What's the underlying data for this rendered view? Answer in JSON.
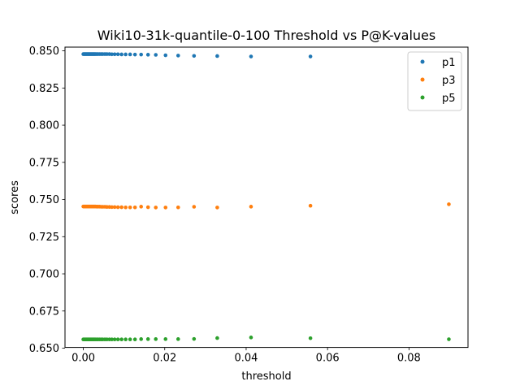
{
  "chart_data": {
    "type": "scatter",
    "title": "Wiki10-31k-quantile-0-100 Threshold vs P@K-values",
    "xlabel": "threshold",
    "ylabel": "scores",
    "xlim": [
      -0.0045,
      0.0945
    ],
    "ylim": [
      0.6505,
      0.8525
    ],
    "x_ticks": [
      0.0,
      0.02,
      0.04,
      0.06,
      0.08
    ],
    "x_tick_labels": [
      "0.00",
      "0.02",
      "0.04",
      "0.06",
      "0.08"
    ],
    "y_ticks": [
      0.65,
      0.675,
      0.7,
      0.725,
      0.75,
      0.775,
      0.8,
      0.825,
      0.85
    ],
    "y_tick_labels": [
      "0.650",
      "0.675",
      "0.700",
      "0.725",
      "0.750",
      "0.775",
      "0.800",
      "0.825",
      "0.850"
    ],
    "grid": false,
    "legend_position": "top-right",
    "x": [
      0.0,
      0.0002,
      0.0004,
      0.0006,
      0.0008,
      0.001,
      0.0012,
      0.0014,
      0.0016,
      0.0018,
      0.002,
      0.0022,
      0.0024,
      0.0026,
      0.0028,
      0.003,
      0.0033,
      0.0036,
      0.004,
      0.0044,
      0.0048,
      0.0053,
      0.0058,
      0.0064,
      0.007,
      0.0077,
      0.0085,
      0.0094,
      0.0104,
      0.0115,
      0.0127,
      0.0142,
      0.0159,
      0.0178,
      0.0202,
      0.0233,
      0.0272,
      0.0329,
      0.0412,
      0.0558,
      0.0898
    ],
    "series": [
      {
        "name": "p1",
        "color": "#1f77b4",
        "values": [
          0.8478,
          0.8478,
          0.8478,
          0.8478,
          0.8478,
          0.8478,
          0.8478,
          0.8478,
          0.8478,
          0.8478,
          0.8478,
          0.8478,
          0.8478,
          0.8478,
          0.8478,
          0.8478,
          0.8478,
          0.8478,
          0.8478,
          0.8478,
          0.8478,
          0.8478,
          0.8478,
          0.8478,
          0.8477,
          0.8477,
          0.8477,
          0.8476,
          0.8476,
          0.8476,
          0.8475,
          0.8475,
          0.8474,
          0.8473,
          0.847,
          0.8468,
          0.8466,
          0.8465,
          0.8462,
          0.8462,
          null
        ]
      },
      {
        "name": "p3",
        "color": "#ff7f0e",
        "values": [
          0.7453,
          0.7453,
          0.7453,
          0.7453,
          0.7453,
          0.7453,
          0.7453,
          0.7453,
          0.7453,
          0.7453,
          0.7453,
          0.7453,
          0.7453,
          0.7453,
          0.7453,
          0.7453,
          0.7452,
          0.7452,
          0.7452,
          0.7451,
          0.7451,
          0.7451,
          0.745,
          0.745,
          0.7449,
          0.7449,
          0.7448,
          0.7448,
          0.7447,
          0.7447,
          0.7447,
          0.7452,
          0.7448,
          0.7446,
          0.7446,
          0.7447,
          0.7451,
          0.7446,
          0.7452,
          0.7458,
          0.7468
        ]
      },
      {
        "name": "p5",
        "color": "#2ca02c",
        "values": [
          0.6559,
          0.6559,
          0.6559,
          0.6559,
          0.6559,
          0.6559,
          0.6559,
          0.6559,
          0.6559,
          0.6559,
          0.6559,
          0.6559,
          0.6559,
          0.6559,
          0.6559,
          0.6559,
          0.6559,
          0.6559,
          0.6559,
          0.6559,
          0.6559,
          0.6559,
          0.6559,
          0.6559,
          0.6559,
          0.6559,
          0.6559,
          0.6559,
          0.6559,
          0.6559,
          0.6559,
          0.6561,
          0.6561,
          0.6561,
          0.6561,
          0.6561,
          0.6562,
          0.6568,
          0.6572,
          0.6567,
          0.656
        ]
      }
    ]
  }
}
